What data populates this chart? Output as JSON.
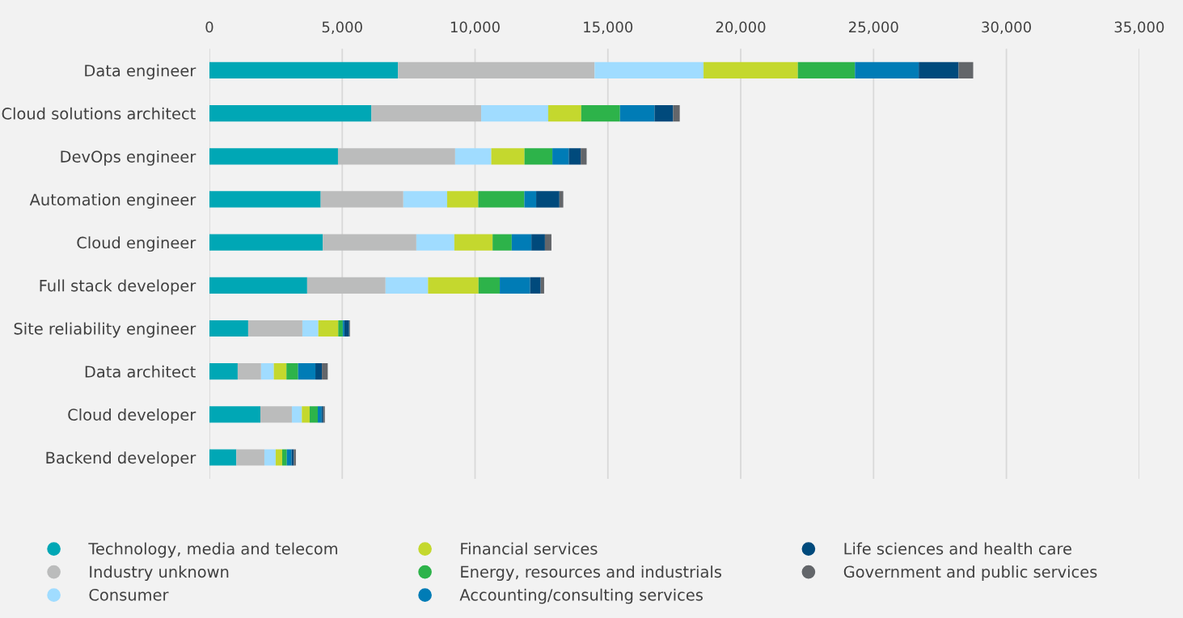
{
  "chart_data": {
    "type": "bar",
    "orientation": "horizontal",
    "stacked": true,
    "categories": [
      "Data engineer",
      "Cloud solutions architect",
      "DevOps engineer",
      "Automation engineer",
      "Cloud engineer",
      "Full stack developer",
      "Site reliability engineer",
      "Data architect",
      "Cloud developer",
      "Backend developer"
    ],
    "series": [
      {
        "name": "Technology, media and telecom",
        "color": "#00a7b5",
        "values": [
          7100,
          6100,
          4840,
          4190,
          4270,
          3680,
          1460,
          1065,
          1920,
          1015
        ]
      },
      {
        "name": "Industry unknown",
        "color": "#bbbcbc",
        "values": [
          7400,
          4130,
          4410,
          3110,
          3520,
          2950,
          2040,
          880,
          1185,
          1055
        ]
      },
      {
        "name": "Consumer",
        "color": "#a0dcff",
        "values": [
          4100,
          2525,
          1360,
          1650,
          1430,
          1600,
          600,
          480,
          375,
          425
        ]
      },
      {
        "name": "Financial services",
        "color": "#c4d82e",
        "values": [
          3550,
          1240,
          1250,
          1170,
          1440,
          1900,
          750,
          475,
          295,
          245
        ]
      },
      {
        "name": "Energy, resources and industrials",
        "color": "#2db34a",
        "values": [
          2150,
          1460,
          1050,
          1735,
          720,
          800,
          170,
          440,
          305,
          175
        ]
      },
      {
        "name": "Accounting/consulting services",
        "color": "#007cb6",
        "values": [
          2400,
          1300,
          620,
          445,
          740,
          1140,
          60,
          650,
          145,
          180
        ]
      },
      {
        "name": "Life sciences and health care",
        "color": "#004a7c",
        "values": [
          1500,
          700,
          445,
          875,
          510,
          400,
          180,
          245,
          60,
          80
        ]
      },
      {
        "name": "Government and public services",
        "color": "#63666a",
        "values": [
          550,
          250,
          225,
          145,
          245,
          130,
          30,
          220,
          60,
          80
        ]
      }
    ],
    "xlim": [
      0,
      35000
    ],
    "xticks": [
      {
        "value": 0,
        "label": "0"
      },
      {
        "value": 5000,
        "label": "5,000"
      },
      {
        "value": 10000,
        "label": "10,000"
      },
      {
        "value": 15000,
        "label": "15,000"
      },
      {
        "value": 20000,
        "label": "20,000"
      },
      {
        "value": 25000,
        "label": "25,000"
      },
      {
        "value": 30000,
        "label": "30,000"
      },
      {
        "value": 35000,
        "label": "35,000"
      }
    ],
    "grid": "x",
    "legend": "bottom"
  }
}
